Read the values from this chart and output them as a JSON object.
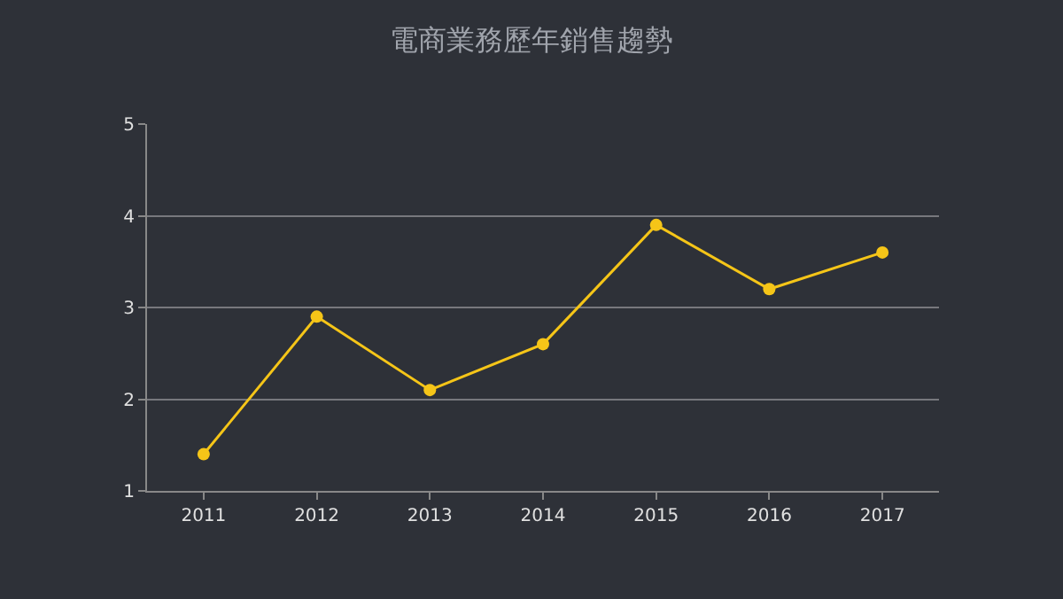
{
  "chart_data": {
    "type": "line",
    "title": "電商業務歷年銷售趨勢",
    "categories": [
      "2011",
      "2012",
      "2013",
      "2014",
      "2015",
      "2016",
      "2017"
    ],
    "series": [
      {
        "color": "#f5c518",
        "values": [
          1.4,
          2.9,
          2.1,
          2.6,
          3.9,
          3.2,
          3.6
        ]
      }
    ],
    "ylim": [
      1,
      5
    ],
    "yticks": [
      1,
      2,
      3,
      4,
      5
    ],
    "grid": "y",
    "marker": "circle",
    "line_style": "solid",
    "legend": false
  }
}
